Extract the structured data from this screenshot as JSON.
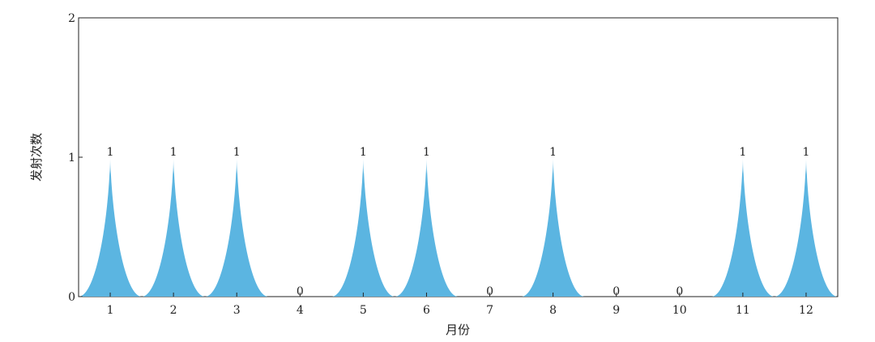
{
  "chart_data": {
    "type": "area",
    "categories": [
      "1",
      "2",
      "3",
      "4",
      "5",
      "6",
      "7",
      "8",
      "9",
      "10",
      "11",
      "12"
    ],
    "values": [
      1,
      1,
      1,
      0,
      1,
      1,
      0,
      1,
      0,
      0,
      1,
      1
    ],
    "data_labels": [
      "1",
      "1",
      "1",
      "0",
      "1",
      "1",
      "0",
      "1",
      "0",
      "0",
      "1",
      "1"
    ],
    "xlabel": "月份",
    "ylabel": "发射次数",
    "ylim": [
      0,
      2
    ],
    "yticks": [
      "0",
      "1",
      "2"
    ],
    "grid": false,
    "color": "#5bb5e1"
  }
}
